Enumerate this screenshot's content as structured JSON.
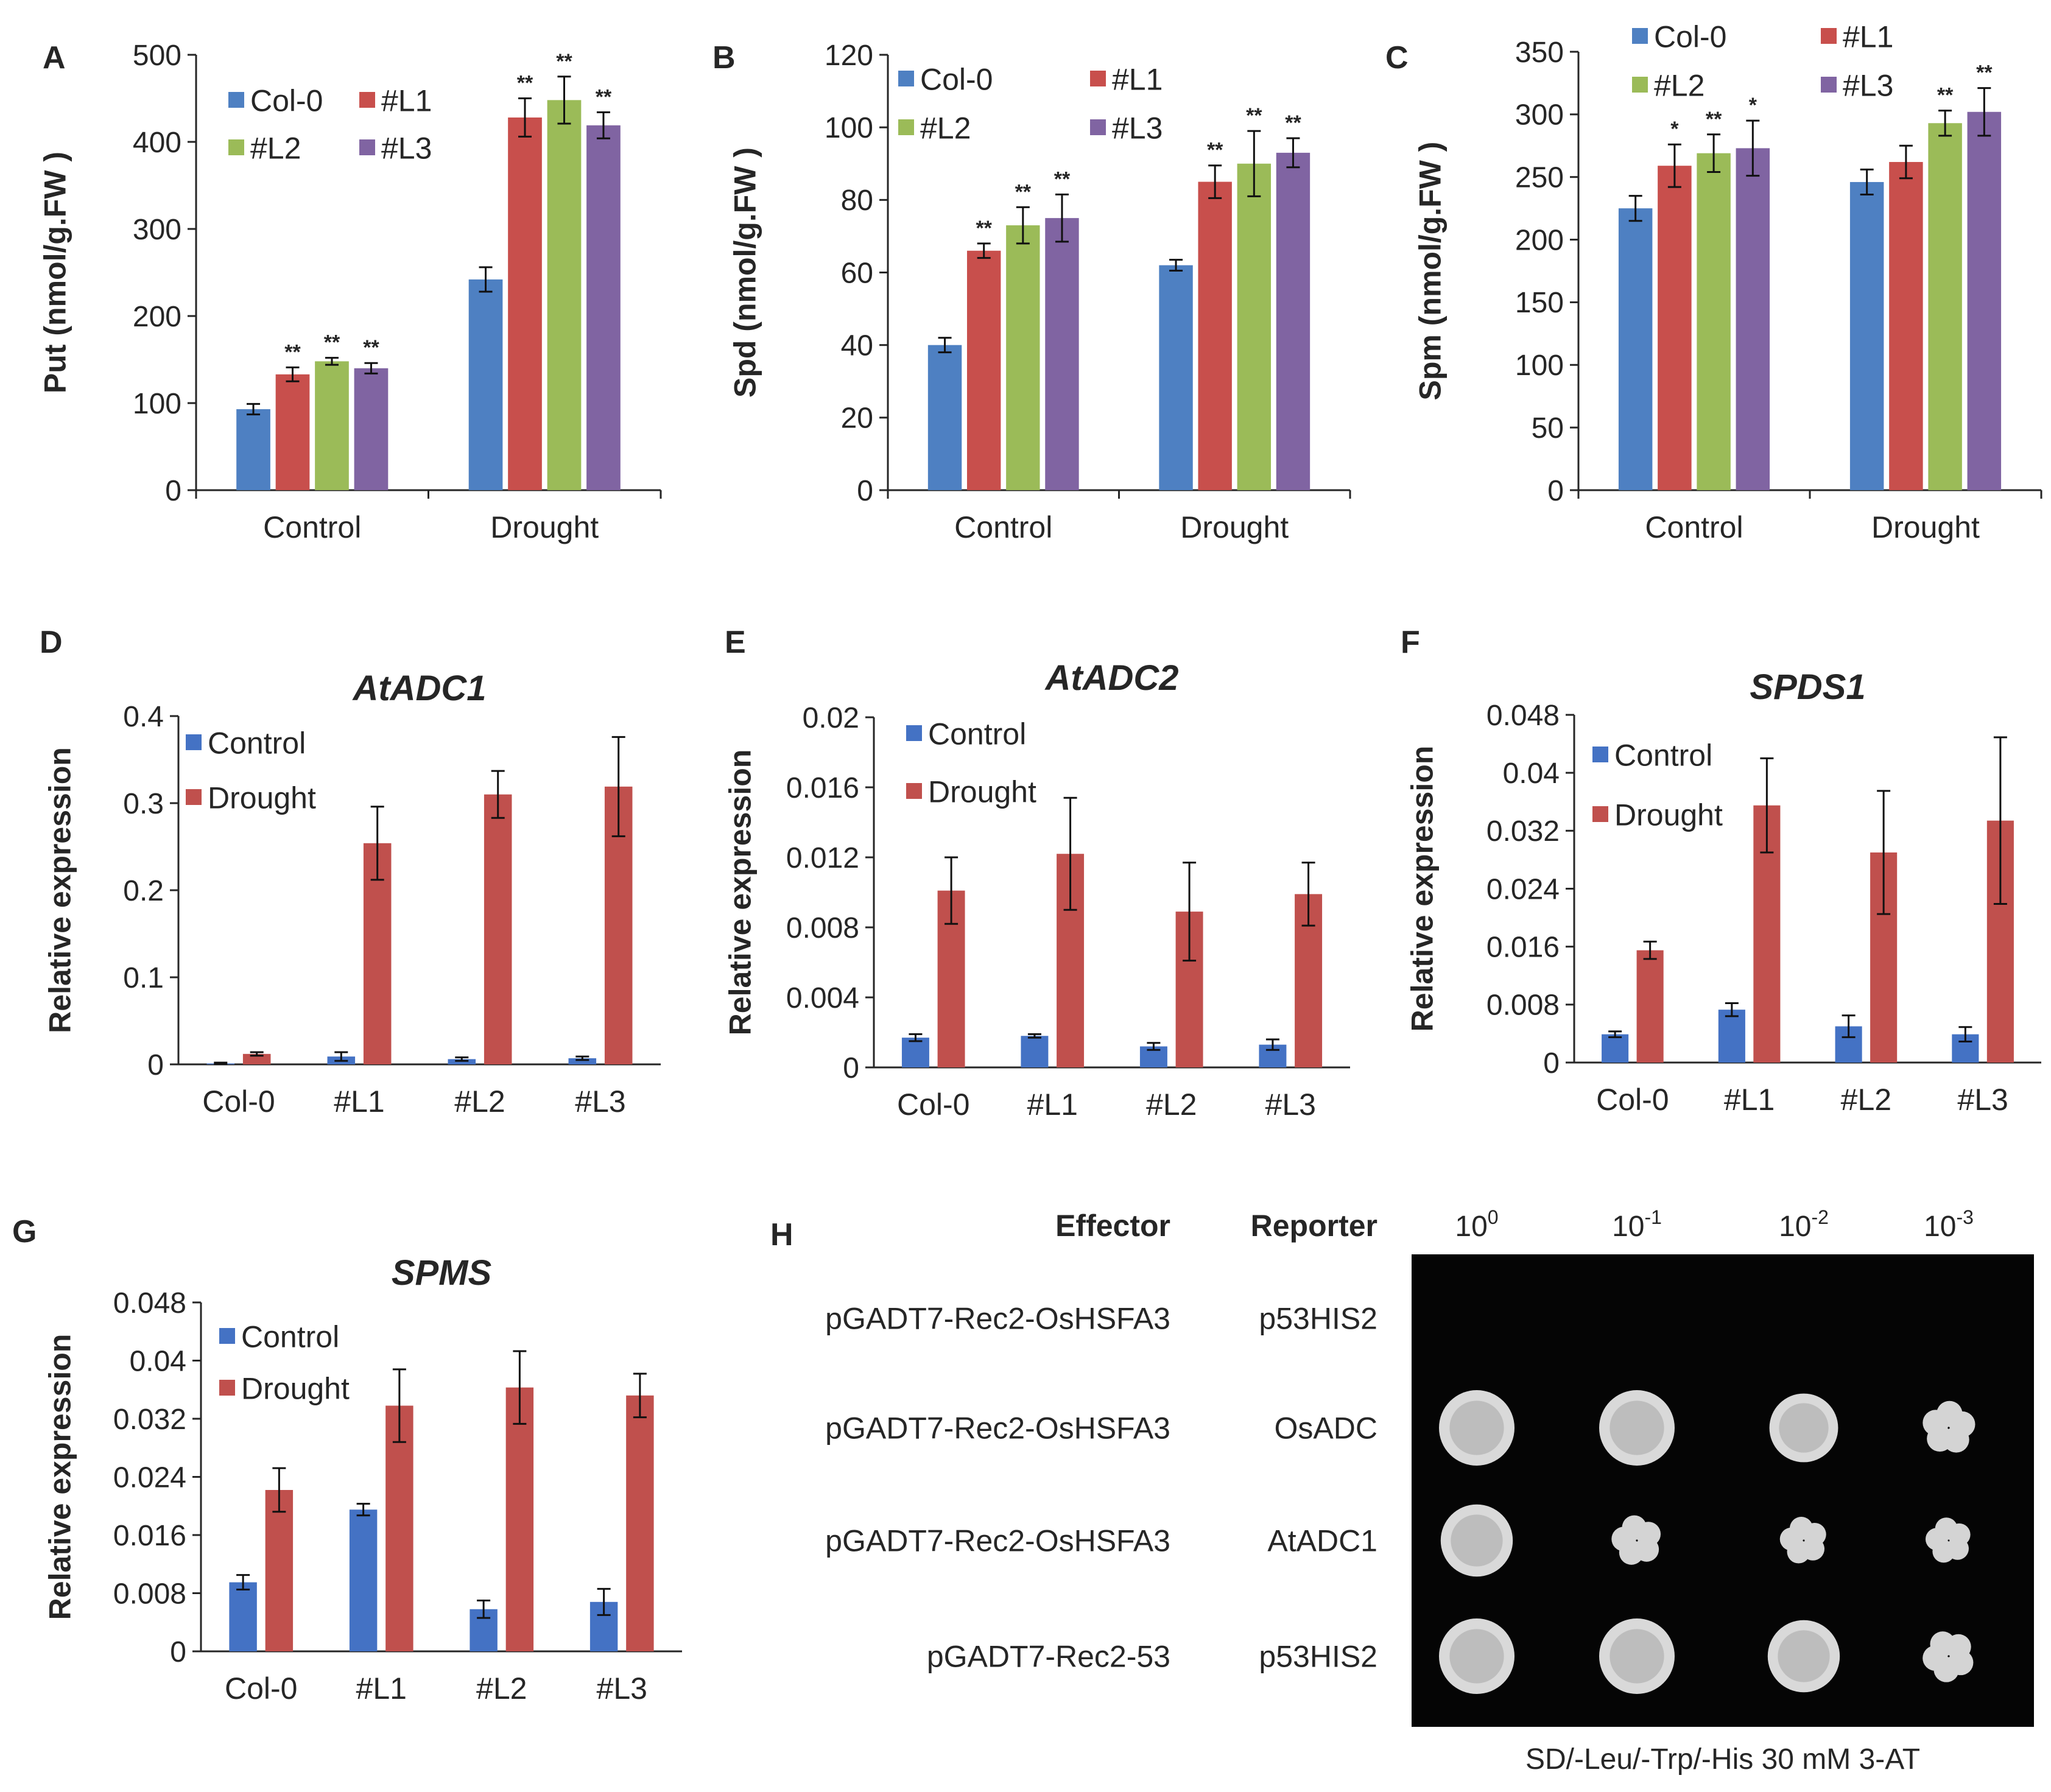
{
  "colors": {
    "Col-0": "#4e80c2",
    "#L1": "#c84f4c",
    "#L2": "#9bbb58",
    "#L3": "#8064a2",
    "Control": "#4472c4",
    "Drought": "#c0504d",
    "axis": "#262626",
    "text": "#262626"
  },
  "chart_data": [
    {
      "id": "A",
      "panel_label": "A",
      "type": "bar",
      "title": "",
      "ylabel": "Put (nmol/g.FW )",
      "xlabel": "",
      "ylim": [
        0,
        500
      ],
      "yticks": [
        0,
        100,
        200,
        300,
        400,
        500
      ],
      "ytick_labels": [
        "0",
        "100",
        "200",
        "300",
        "400",
        "500"
      ],
      "categories": [
        "Control",
        "Drought"
      ],
      "legend_labels": [
        "Col-0",
        "#L1",
        "#L2",
        "#L3"
      ],
      "series": [
        {
          "name": "Col-0",
          "values": [
            93,
            242
          ],
          "errors": [
            6,
            14
          ],
          "sig": [
            "",
            ""
          ]
        },
        {
          "name": "#L1",
          "values": [
            133,
            428
          ],
          "errors": [
            8,
            22
          ],
          "sig": [
            "**",
            "**"
          ]
        },
        {
          "name": "#L2",
          "values": [
            148,
            448
          ],
          "errors": [
            4,
            27
          ],
          "sig": [
            "**",
            "**"
          ]
        },
        {
          "name": "#L3",
          "values": [
            140,
            419
          ],
          "errors": [
            6,
            15
          ],
          "sig": [
            "**",
            "**"
          ]
        }
      ]
    },
    {
      "id": "B",
      "panel_label": "B",
      "type": "bar",
      "title": "",
      "ylabel": "Spd (nmol/g.FW )",
      "xlabel": "",
      "ylim": [
        0,
        120
      ],
      "yticks": [
        0,
        20,
        40,
        60,
        80,
        100,
        120
      ],
      "ytick_labels": [
        "0",
        "20",
        "40",
        "60",
        "80",
        "100",
        "120"
      ],
      "categories": [
        "Control",
        "Drought"
      ],
      "legend_labels": [
        "Col-0",
        "#L1",
        "#L2",
        "#L3"
      ],
      "series": [
        {
          "name": "Col-0",
          "values": [
            40,
            62
          ],
          "errors": [
            2,
            1.5
          ],
          "sig": [
            "",
            ""
          ]
        },
        {
          "name": "#L1",
          "values": [
            66,
            85
          ],
          "errors": [
            2,
            4.5
          ],
          "sig": [
            "**",
            "**"
          ]
        },
        {
          "name": "#L2",
          "values": [
            73,
            90
          ],
          "errors": [
            5,
            9
          ],
          "sig": [
            "**",
            "**"
          ]
        },
        {
          "name": "#L3",
          "values": [
            75,
            93
          ],
          "errors": [
            6.5,
            4
          ],
          "sig": [
            "**",
            "**"
          ]
        }
      ]
    },
    {
      "id": "C",
      "panel_label": "C",
      "type": "bar",
      "title": "",
      "ylabel": "Spm (nmol/g.FW )",
      "xlabel": "",
      "ylim": [
        0,
        350
      ],
      "yticks": [
        0,
        50,
        100,
        150,
        200,
        250,
        300,
        350
      ],
      "ytick_labels": [
        "0",
        "50",
        "100",
        "150",
        "200",
        "250",
        "300",
        "350"
      ],
      "categories": [
        "Control",
        "Drought"
      ],
      "legend_labels": [
        "Col-0",
        "#L1",
        "#L2",
        "#L3"
      ],
      "series": [
        {
          "name": "Col-0",
          "values": [
            225,
            246
          ],
          "errors": [
            10,
            10
          ],
          "sig": [
            "",
            ""
          ]
        },
        {
          "name": "#L1",
          "values": [
            259,
            262
          ],
          "errors": [
            17,
            13
          ],
          "sig": [
            "*",
            ""
          ]
        },
        {
          "name": "#L2",
          "values": [
            269,
            293
          ],
          "errors": [
            15,
            10
          ],
          "sig": [
            "**",
            "**"
          ]
        },
        {
          "name": "#L3",
          "values": [
            273,
            302
          ],
          "errors": [
            22,
            19
          ],
          "sig": [
            "*",
            "**"
          ]
        }
      ]
    },
    {
      "id": "D",
      "panel_label": "D",
      "type": "bar",
      "title": "AtADC1",
      "ylabel": "Relative expression",
      "xlabel": "",
      "ylim": [
        0,
        0.4
      ],
      "yticks": [
        0,
        0.1,
        0.2,
        0.3,
        0.4
      ],
      "ytick_labels": [
        "0",
        "0.1",
        "0.2",
        "0.3",
        "0.4"
      ],
      "categories": [
        "Col-0",
        "#L1",
        "#L2",
        "#L3"
      ],
      "legend_labels": [
        "Control",
        "Drought"
      ],
      "series": [
        {
          "name": "Control",
          "values": [
            0.001,
            0.009,
            0.006,
            0.007
          ],
          "errors": [
            0.001,
            0.005,
            0.002,
            0.002
          ]
        },
        {
          "name": "Drought",
          "values": [
            0.012,
            0.254,
            0.31,
            0.319
          ],
          "errors": [
            0.002,
            0.042,
            0.027,
            0.057
          ]
        }
      ]
    },
    {
      "id": "E",
      "panel_label": "E",
      "type": "bar",
      "title": "AtADC2",
      "ylabel": "Relative expression",
      "xlabel": "",
      "ylim": [
        0,
        0.02
      ],
      "yticks": [
        0,
        0.004,
        0.008,
        0.012,
        0.016,
        0.02
      ],
      "ytick_labels": [
        "0",
        "0.004",
        "0.008",
        "0.012",
        "0.016",
        "0.02"
      ],
      "categories": [
        "Col-0",
        "#L1",
        "#L2",
        "#L3"
      ],
      "legend_labels": [
        "Control",
        "Drought"
      ],
      "series": [
        {
          "name": "Control",
          "values": [
            0.0017,
            0.0018,
            0.0012,
            0.0013
          ],
          "errors": [
            0.0002,
            0.0001,
            0.0002,
            0.0003
          ]
        },
        {
          "name": "Drought",
          "values": [
            0.0101,
            0.0122,
            0.0089,
            0.0099
          ],
          "errors": [
            0.0019,
            0.0032,
            0.0028,
            0.0018
          ]
        }
      ]
    },
    {
      "id": "F",
      "panel_label": "F",
      "type": "bar",
      "title": "SPDS1",
      "ylabel": "Relative expression",
      "xlabel": "",
      "ylim": [
        0,
        0.048
      ],
      "yticks": [
        0,
        0.008,
        0.016,
        0.024,
        0.032,
        0.04,
        0.048
      ],
      "ytick_labels": [
        "0",
        "0.008",
        "0.016",
        "0.024",
        "0.032",
        "0.04",
        "0.048"
      ],
      "categories": [
        "Col-0",
        "#L1",
        "#L2",
        "#L3"
      ],
      "legend_labels": [
        "Control",
        "Drought"
      ],
      "series": [
        {
          "name": "Control",
          "values": [
            0.0039,
            0.0073,
            0.005,
            0.0039
          ],
          "errors": [
            0.0004,
            0.0009,
            0.0015,
            0.001
          ]
        },
        {
          "name": "Drought",
          "values": [
            0.0155,
            0.0355,
            0.029,
            0.0334
          ],
          "errors": [
            0.0012,
            0.0065,
            0.0085,
            0.0115
          ]
        }
      ]
    },
    {
      "id": "G",
      "panel_label": "G",
      "type": "bar",
      "title": "SPMS",
      "ylabel": "Relative expression",
      "xlabel": "",
      "ylim": [
        0,
        0.048
      ],
      "yticks": [
        0,
        0.008,
        0.016,
        0.024,
        0.032,
        0.04,
        0.048
      ],
      "ytick_labels": [
        "0",
        "0.008",
        "0.016",
        "0.024",
        "0.032",
        "0.04",
        "0.048"
      ],
      "categories": [
        "Col-0",
        "#L1",
        "#L2",
        "#L3"
      ],
      "legend_labels": [
        "Control",
        "Drought"
      ],
      "series": [
        {
          "name": "Control",
          "values": [
            0.0095,
            0.0195,
            0.0058,
            0.0068
          ],
          "errors": [
            0.001,
            0.0008,
            0.0012,
            0.0018
          ]
        },
        {
          "name": "Drought",
          "values": [
            0.0222,
            0.0338,
            0.0363,
            0.0352
          ],
          "errors": [
            0.003,
            0.005,
            0.005,
            0.003
          ]
        }
      ]
    }
  ],
  "panel_h": {
    "label": "H",
    "effector_header": "Effector",
    "reporter_header": "Reporter",
    "dilutions": [
      {
        "base": "10",
        "exp": "0"
      },
      {
        "base": "10",
        "exp": "-1"
      },
      {
        "base": "10",
        "exp": "-2"
      },
      {
        "base": "10",
        "exp": "-3"
      }
    ],
    "rows": [
      {
        "effector": "pGADT7-Rec2-OsHSFA3",
        "reporter": "p53HIS2",
        "growth": [
          0,
          0,
          0,
          0
        ]
      },
      {
        "effector": "pGADT7-Rec2-OsHSFA3",
        "reporter": "OsADC",
        "growth": [
          1,
          1,
          0.8,
          0.6
        ]
      },
      {
        "effector": "pGADT7-Rec2-OsHSFA3",
        "reporter": "AtADC1",
        "growth": [
          0.9,
          0.5,
          0.4,
          0.35
        ]
      },
      {
        "effector": "pGADT7-Rec2-53",
        "reporter": "p53HIS2",
        "growth": [
          1,
          1,
          0.9,
          0.55
        ]
      }
    ],
    "caption": "SD/-Leu/-Trp/-His 30 mM 3-AT"
  }
}
